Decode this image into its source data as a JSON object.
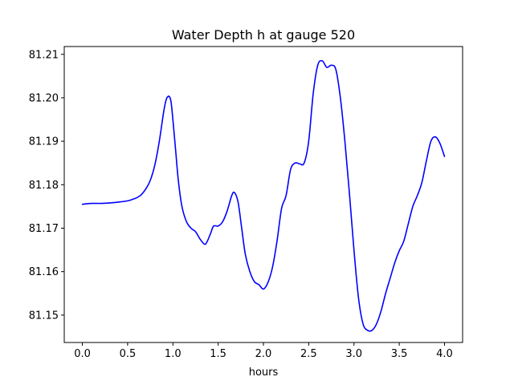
{
  "chart_data": {
    "type": "line",
    "title": "Water Depth h at gauge 520",
    "xlabel": "hours",
    "ylabel": "",
    "xlim": [
      -0.2,
      4.2
    ],
    "ylim": [
      81.1437,
      81.2118
    ],
    "x_ticks": [
      0.0,
      0.5,
      1.0,
      1.5,
      2.0,
      2.5,
      3.0,
      3.5,
      4.0
    ],
    "x_tick_labels": [
      "0.0",
      "0.5",
      "1.0",
      "1.5",
      "2.0",
      "2.5",
      "3.0",
      "3.5",
      "4.0"
    ],
    "y_ticks": [
      81.15,
      81.16,
      81.17,
      81.18,
      81.19,
      81.2,
      81.21
    ],
    "y_tick_labels": [
      "81.15",
      "81.16",
      "81.17",
      "81.18",
      "81.19",
      "81.20",
      "81.21"
    ],
    "grid": false,
    "colors": {
      "line": "#0000ff",
      "axes": "#000000",
      "background": "#ffffff"
    },
    "series": [
      {
        "x": [
          0.0,
          0.1,
          0.2,
          0.3,
          0.4,
          0.5,
          0.55,
          0.6,
          0.65,
          0.7,
          0.75,
          0.8,
          0.85,
          0.9,
          0.93,
          0.96,
          0.98,
          1.0,
          1.03,
          1.06,
          1.1,
          1.15,
          1.2,
          1.25,
          1.3,
          1.35,
          1.38,
          1.42,
          1.45,
          1.5,
          1.55,
          1.6,
          1.65,
          1.68,
          1.72,
          1.76,
          1.8,
          1.85,
          1.9,
          1.95,
          2.0,
          2.05,
          2.1,
          2.15,
          2.2,
          2.25,
          2.3,
          2.35,
          2.4,
          2.45,
          2.5,
          2.55,
          2.6,
          2.65,
          2.7,
          2.75,
          2.8,
          2.85,
          2.9,
          2.95,
          3.0,
          3.05,
          3.1,
          3.15,
          3.2,
          3.25,
          3.3,
          3.35,
          3.4,
          3.45,
          3.5,
          3.55,
          3.6,
          3.65,
          3.7,
          3.75,
          3.8,
          3.85,
          3.9,
          3.95,
          4.0
        ],
        "y": [
          81.1755,
          81.1757,
          81.1757,
          81.1758,
          81.176,
          81.1763,
          81.1766,
          81.177,
          81.1777,
          81.179,
          81.181,
          81.1845,
          81.19,
          81.197,
          81.1998,
          81.2003,
          81.199,
          81.195,
          81.188,
          81.181,
          81.175,
          81.1715,
          81.17,
          81.1692,
          81.1675,
          81.1663,
          81.167,
          81.169,
          81.1705,
          81.1705,
          81.1715,
          81.174,
          81.1775,
          81.1782,
          81.176,
          81.17,
          81.164,
          81.16,
          81.1577,
          81.157,
          81.156,
          81.1575,
          81.161,
          81.167,
          81.1745,
          81.1775,
          81.1835,
          81.185,
          81.1848,
          81.185,
          81.19,
          81.201,
          81.2075,
          81.2085,
          81.207,
          81.2075,
          81.2065,
          81.2,
          81.19,
          81.178,
          81.165,
          81.154,
          81.148,
          81.1465,
          81.1465,
          81.148,
          81.151,
          81.155,
          81.1585,
          81.162,
          81.1648,
          81.167,
          81.171,
          81.175,
          81.1775,
          81.1805,
          81.1855,
          81.19,
          81.191,
          81.1895,
          81.1865
        ]
      }
    ]
  }
}
